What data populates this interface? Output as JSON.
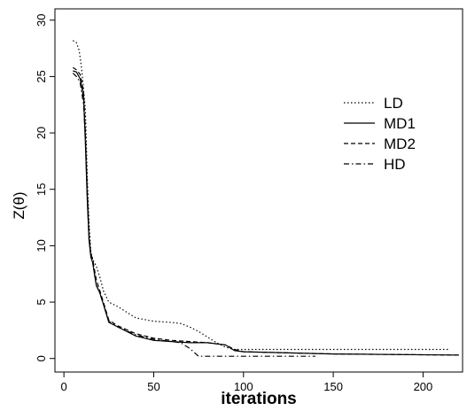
{
  "chart_data": {
    "type": "line",
    "title": "",
    "xlabel": "iterations",
    "ylabel": "Z(θ)",
    "xlim": [
      -5,
      222
    ],
    "ylim": [
      -1.2,
      31
    ],
    "xticks": [
      0,
      50,
      100,
      150,
      200
    ],
    "yticks": [
      0,
      5,
      10,
      15,
      20,
      25,
      30
    ],
    "grid": false,
    "legend_position": "right",
    "series": [
      {
        "name": "LD",
        "dash": "dotted",
        "x": [
          5,
          7,
          8.5,
          10,
          12,
          13,
          14,
          15,
          16,
          18,
          20,
          22,
          25,
          30,
          40,
          50,
          60,
          65,
          70,
          75,
          80,
          85,
          90,
          95,
          100,
          150,
          215
        ],
        "y": [
          28.2,
          28,
          27.3,
          25.5,
          22,
          16,
          12,
          9.5,
          8.8,
          8.2,
          7.2,
          6,
          5,
          4.6,
          3.6,
          3.3,
          3.2,
          3.1,
          2.8,
          2.4,
          1.9,
          1.4,
          1.0,
          0.8,
          0.8,
          0.8,
          0.8
        ]
      },
      {
        "name": "MD1",
        "dash": "solid",
        "x": [
          5,
          7,
          9,
          10,
          11,
          12,
          13,
          14,
          15,
          16,
          18,
          20,
          22,
          25,
          30,
          40,
          50,
          60,
          70,
          80,
          90,
          95,
          100,
          150,
          220
        ],
        "y": [
          25.5,
          25.4,
          24.8,
          24,
          23,
          19,
          14,
          10.5,
          9,
          8.5,
          6.5,
          5.8,
          4.8,
          3.2,
          2.8,
          2.0,
          1.6,
          1.5,
          1.4,
          1.4,
          1.2,
          0.7,
          0.6,
          0.4,
          0.3
        ]
      },
      {
        "name": "MD2",
        "dash": "dashed",
        "x": [
          5,
          7,
          9,
          10,
          11,
          12,
          13,
          14,
          15,
          16,
          18,
          20,
          22,
          25,
          30,
          40,
          50,
          60,
          70,
          80,
          90,
          95,
          100,
          150,
          220
        ],
        "y": [
          25.8,
          25.6,
          25.2,
          24.5,
          23.5,
          20,
          15,
          11,
          9.3,
          8.8,
          7,
          6,
          5,
          3.4,
          2.9,
          2.2,
          1.8,
          1.6,
          1.5,
          1.4,
          1.2,
          0.8,
          0.6,
          0.4,
          0.3
        ]
      },
      {
        "name": "HD",
        "dash": "dashdot",
        "x": [
          5,
          7,
          9,
          10,
          11,
          12,
          13,
          14,
          15,
          16,
          18,
          20,
          22,
          25,
          30,
          40,
          50,
          60,
          65,
          70,
          75,
          80,
          140
        ],
        "y": [
          25.3,
          25,
          24.5,
          23.5,
          22.5,
          19.5,
          14.5,
          10.5,
          9,
          8.5,
          6.5,
          5.8,
          4.8,
          3.3,
          2.8,
          2.1,
          1.7,
          1.5,
          1.4,
          0.9,
          0.2,
          0.2,
          0.2
        ]
      }
    ]
  }
}
